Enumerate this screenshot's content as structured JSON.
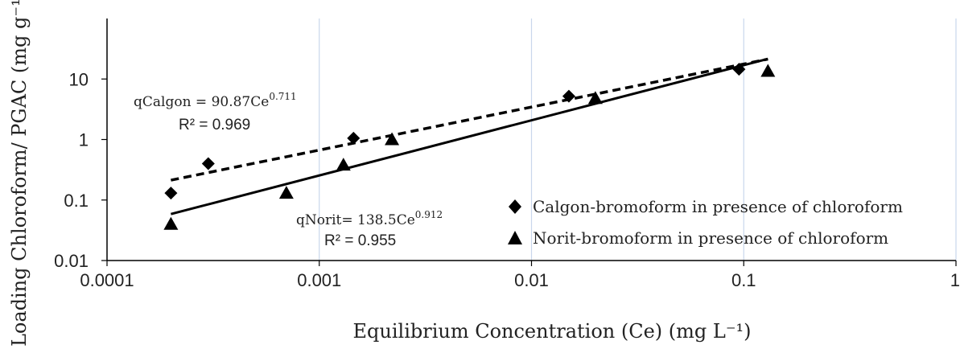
{
  "chart_data": {
    "type": "scatter",
    "xscale": "log",
    "yscale": "log",
    "xlim": [
      0.0001,
      1
    ],
    "ylim": [
      0.01,
      100
    ],
    "xticks": [
      0.0001,
      0.001,
      0.01,
      0.1,
      1
    ],
    "xtick_labels": [
      "0.0001",
      "0.001",
      "0.01",
      "0.1",
      "1"
    ],
    "yticks": [
      0.01,
      0.1,
      1,
      10
    ],
    "ytick_labels": [
      "0.01",
      "0.1",
      "1",
      "10"
    ],
    "xlabel": "Equilibrium Concentration (Ce) (mg L⁻¹)",
    "ylabel": "Loading Chloroform/ PGAC (mg g⁻¹)",
    "grid": "vertical",
    "legend_position": "bottom-right",
    "series": [
      {
        "name": "Calgon-bromoform in presence of chloroform",
        "marker": "diamond",
        "x": [
          0.0002,
          0.0003,
          0.00145,
          0.015,
          0.095
        ],
        "y": [
          0.13,
          0.4,
          1.05,
          5.2,
          14.5
        ],
        "fit": {
          "line_style": "dashed",
          "x_range": [
            0.0002,
            0.13
          ],
          "coef": 90.87,
          "exponent": 0.711,
          "equation_prefix": "qCalgon = 90.87Ce",
          "equation_exponent": "0.711",
          "r2_label": "R² = 0.969"
        }
      },
      {
        "name": "Norit-bromoform in presence of chloroform",
        "marker": "triangle",
        "x": [
          0.0002,
          0.0007,
          0.0013,
          0.0022,
          0.02,
          0.13
        ],
        "y": [
          0.04,
          0.13,
          0.38,
          1.0,
          4.8,
          13.5
        ],
        "fit": {
          "line_style": "solid",
          "x_range": [
            0.0002,
            0.13
          ],
          "coef": 138.5,
          "exponent": 0.912,
          "equation_prefix": "qNorit= 138.5Ce",
          "equation_exponent": "0.912",
          "r2_label": "R² = 0.955"
        }
      }
    ]
  },
  "colors": {
    "axis": "#000000",
    "grid": "#c9d7ec",
    "marker": "#000000",
    "text": "#222222"
  }
}
